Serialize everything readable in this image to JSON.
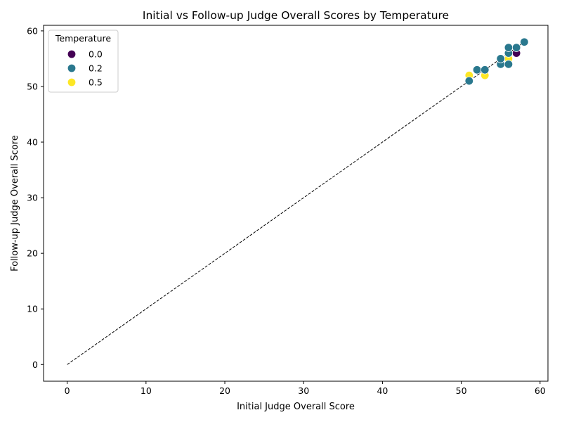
{
  "chart_data": {
    "type": "scatter",
    "title": "Initial vs Follow-up Judge Overall Scores by Temperature",
    "xlabel": "Initial Judge Overall Score",
    "ylabel": "Follow-up Judge Overall Score",
    "xlim": [
      -3,
      61
    ],
    "ylim": [
      -3,
      61
    ],
    "xticks": [
      0,
      10,
      20,
      30,
      40,
      50,
      60
    ],
    "yticks": [
      0,
      10,
      20,
      30,
      40,
      50,
      60
    ],
    "grid": false,
    "reference_line": {
      "style": "dashed",
      "color": "#000000",
      "x": [
        0,
        58
      ],
      "y": [
        0,
        58
      ]
    },
    "legend": {
      "title": "Temperature",
      "placement": "upper-left",
      "entries": [
        {
          "label": "0.0",
          "color": "#440154"
        },
        {
          "label": "0.2",
          "color": "#2a788e"
        },
        {
          "label": "0.5",
          "color": "#fde725"
        }
      ]
    },
    "series": [
      {
        "name": "0.0",
        "color": "#440154",
        "points": [
          [
            57,
            56
          ]
        ]
      },
      {
        "name": "0.5",
        "color": "#fde725",
        "points": [
          [
            51,
            52
          ],
          [
            53,
            52
          ],
          [
            56,
            55
          ]
        ]
      },
      {
        "name": "0.2",
        "color": "#2a788e",
        "points": [
          [
            51,
            51
          ],
          [
            52,
            53
          ],
          [
            53,
            53
          ],
          [
            55,
            54
          ],
          [
            55,
            55
          ],
          [
            56,
            54
          ],
          [
            56,
            56
          ],
          [
            56,
            57
          ],
          [
            57,
            57
          ],
          [
            58,
            58
          ]
        ]
      }
    ]
  }
}
